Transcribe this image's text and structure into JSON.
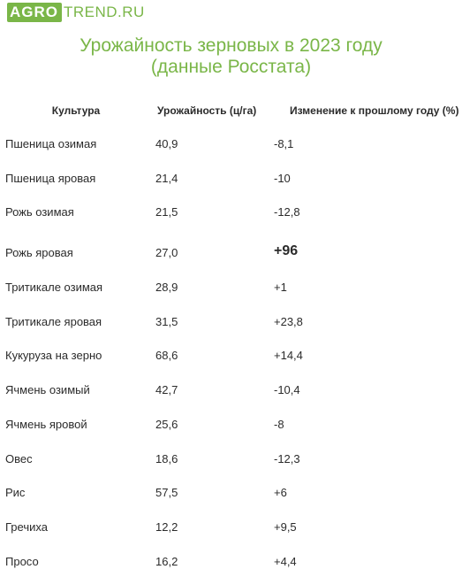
{
  "logo": {
    "part1": "AGRO",
    "part2": "TREND.RU"
  },
  "title": {
    "line1": "Урожайность зерновых в 2023 году",
    "line2": "(данные Росстата)"
  },
  "columns": {
    "crop": "Культура",
    "yield": "Урожайность (ц/га)",
    "change": "Изменение к прошлому году (%)"
  },
  "rows": [
    {
      "crop": "Пшеница озимая",
      "yield": "40,9",
      "change": "-8,1"
    },
    {
      "crop": "Пшеница яровая",
      "yield": "21,4",
      "change": "-10"
    },
    {
      "crop": "Рожь озимая",
      "yield": "21,5",
      "change": "-12,8"
    },
    {
      "crop": "Рожь яровая",
      "yield": "27,0",
      "change": "+96"
    },
    {
      "crop": "Тритикале озимая",
      "yield": "28,9",
      "change": "+1"
    },
    {
      "crop": "Тритикале яровая",
      "yield": "31,5",
      "change": "+23,8"
    },
    {
      "crop": "Кукуруза на зерно",
      "yield": "68,6",
      "change": "+14,4"
    },
    {
      "crop": "Ячмень озимый",
      "yield": "42,7",
      "change": "-10,4"
    },
    {
      "crop": "Ячмень яровой",
      "yield": "25,6",
      "change": "-8"
    },
    {
      "crop": "Овес",
      "yield": "18,6",
      "change": "-12,3"
    },
    {
      "crop": "Рис",
      "yield": "57,5",
      "change": "+6"
    },
    {
      "crop": "Гречиха",
      "yield": "12,2",
      "change": "+9,5"
    },
    {
      "crop": "Просо",
      "yield": "16,2",
      "change": "+4,4"
    }
  ],
  "colors": {
    "brand": "#7ab648",
    "text": "#2b2b2b"
  }
}
